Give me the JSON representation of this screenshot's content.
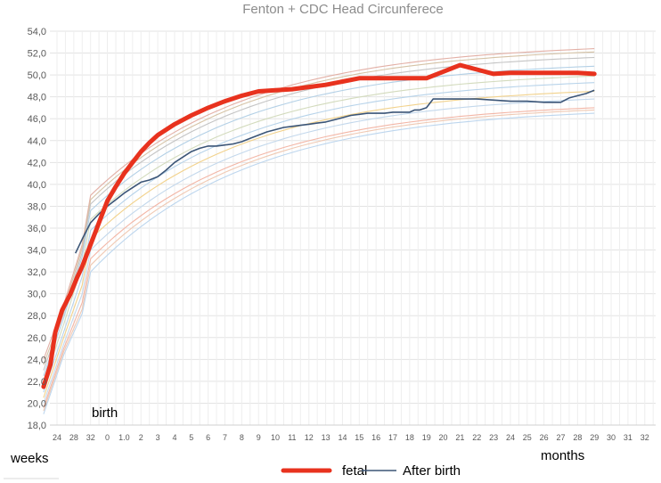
{
  "chart_data": {
    "type": "line",
    "title": "Fenton + CDC Head Circunferece",
    "xlabel": "",
    "ylabel": "",
    "ylim": [
      18.0,
      54.0
    ],
    "yticks": [
      "18,0",
      "20,0",
      "22,0",
      "24,0",
      "26,0",
      "28,0",
      "30,0",
      "32,0",
      "34,0",
      "36,0",
      "38,0",
      "40,0",
      "42,0",
      "44,0",
      "46,0",
      "48,0",
      "50,0",
      "52,0",
      "54,0"
    ],
    "x_tick_labels": [
      "24",
      "28",
      "32",
      "0",
      "1.0",
      "2",
      "3",
      "4",
      "5",
      "6",
      "7",
      "8",
      "9",
      "10",
      "11",
      "12",
      "13",
      "14",
      "15",
      "16",
      "17",
      "18",
      "19",
      "20",
      "21",
      "22",
      "23",
      "24",
      "25",
      "26",
      "27",
      "28",
      "29",
      "30",
      "31",
      "32"
    ],
    "annotations": {
      "weeks": "weeks",
      "birth": "birth",
      "months": "months"
    },
    "grid": true,
    "legend": "bottom-center",
    "series": [
      {
        "name": "fetal",
        "color": "#e8321e",
        "points": [
          [
            -0.8,
            21.5
          ],
          [
            -0.4,
            23.5
          ],
          [
            -0.1,
            26.5
          ],
          [
            0.3,
            28.5
          ],
          [
            0.8,
            30.0
          ],
          [
            1.2,
            31.5
          ],
          [
            1.5,
            32.5
          ],
          [
            2,
            34.5
          ],
          [
            2.5,
            36.5
          ],
          [
            3,
            38.5
          ],
          [
            3.5,
            39.8
          ],
          [
            4,
            41.0
          ],
          [
            4.5,
            42.0
          ],
          [
            5,
            43.0
          ],
          [
            5.5,
            43.8
          ],
          [
            6,
            44.5
          ],
          [
            7,
            45.5
          ],
          [
            8,
            46.3
          ],
          [
            9,
            47.0
          ],
          [
            10,
            47.6
          ],
          [
            11,
            48.1
          ],
          [
            12,
            48.5
          ],
          [
            13,
            48.6
          ],
          [
            14,
            48.7
          ],
          [
            15,
            48.9
          ],
          [
            16,
            49.1
          ],
          [
            17,
            49.4
          ],
          [
            18,
            49.7
          ],
          [
            19,
            49.7
          ],
          [
            20,
            49.7
          ],
          [
            21,
            49.7
          ],
          [
            22,
            49.7
          ],
          [
            23,
            50.3
          ],
          [
            24,
            50.9
          ],
          [
            25,
            50.5
          ],
          [
            26,
            50.1
          ],
          [
            27,
            50.2
          ],
          [
            28,
            50.2
          ],
          [
            29,
            50.2
          ],
          [
            30,
            50.2
          ],
          [
            31,
            50.2
          ],
          [
            32,
            50.1
          ]
        ]
      },
      {
        "name": "After birth",
        "color": "#3b5577",
        "points": [
          [
            1.1,
            33.7
          ],
          [
            1.5,
            35.0
          ],
          [
            2,
            36.5
          ],
          [
            2.5,
            37.3
          ],
          [
            3,
            38.0
          ],
          [
            3.5,
            38.6
          ],
          [
            4,
            39.2
          ],
          [
            4.5,
            39.7
          ],
          [
            5,
            40.2
          ],
          [
            5.5,
            40.4
          ],
          [
            6,
            40.7
          ],
          [
            6.5,
            41.3
          ],
          [
            7,
            42.0
          ],
          [
            7.5,
            42.5
          ],
          [
            8,
            43.0
          ],
          [
            8.5,
            43.3
          ],
          [
            9,
            43.5
          ],
          [
            9.5,
            43.5
          ],
          [
            10,
            43.6
          ],
          [
            10.5,
            43.7
          ],
          [
            11,
            43.9
          ],
          [
            11.5,
            44.2
          ],
          [
            12,
            44.5
          ],
          [
            12.5,
            44.8
          ],
          [
            13,
            45.0
          ],
          [
            13.5,
            45.2
          ],
          [
            14,
            45.3
          ],
          [
            14.5,
            45.4
          ],
          [
            15,
            45.5
          ],
          [
            15.5,
            45.6
          ],
          [
            16,
            45.7
          ],
          [
            16.5,
            45.9
          ],
          [
            17,
            46.1
          ],
          [
            17.5,
            46.3
          ],
          [
            18,
            46.4
          ],
          [
            18.5,
            46.5
          ],
          [
            19,
            46.5
          ],
          [
            19.5,
            46.5
          ],
          [
            20,
            46.6
          ],
          [
            20.5,
            46.6
          ],
          [
            21,
            46.6
          ],
          [
            21.3,
            46.8
          ],
          [
            21.6,
            46.8
          ],
          [
            22,
            47.0
          ],
          [
            22.4,
            47.8
          ],
          [
            23,
            47.8
          ],
          [
            24,
            47.8
          ],
          [
            25,
            47.8
          ],
          [
            26,
            47.7
          ],
          [
            27,
            47.6
          ],
          [
            28,
            47.6
          ],
          [
            29,
            47.5
          ],
          [
            30,
            47.5
          ],
          [
            30.5,
            47.9
          ],
          [
            31,
            48.1
          ],
          [
            31.5,
            48.3
          ],
          [
            32,
            48.6
          ]
        ]
      }
    ],
    "reference_curves": [
      {
        "color": "#e3b0a6",
        "points": [
          [
            -0.8,
            24.0
          ],
          [
            0.4,
            29.0
          ],
          [
            1.5,
            34.5
          ],
          [
            2.0,
            39.0
          ],
          [
            32,
            52.4
          ]
        ]
      },
      {
        "color": "#d6c3a6",
        "points": [
          [
            -0.8,
            23.5
          ],
          [
            0.4,
            28.6
          ],
          [
            1.5,
            34.2
          ],
          [
            2.0,
            38.6
          ],
          [
            32,
            52.1
          ]
        ]
      },
      {
        "color": "#c4c4c4",
        "points": [
          [
            -0.8,
            23.0
          ],
          [
            0.4,
            28.2
          ],
          [
            1.5,
            33.8
          ],
          [
            2.0,
            38.2
          ],
          [
            32,
            51.6
          ]
        ]
      },
      {
        "color": "#b3d0e6",
        "points": [
          [
            -0.8,
            22.5
          ],
          [
            0.4,
            27.8
          ],
          [
            1.5,
            33.4
          ],
          [
            2.0,
            37.6
          ],
          [
            32,
            50.8
          ]
        ]
      },
      {
        "color": "#d3dbbd",
        "points": [
          [
            -0.8,
            21.8
          ],
          [
            0.4,
            27.2
          ],
          [
            1.5,
            32.6
          ],
          [
            2.0,
            36.8
          ],
          [
            32,
            49.9
          ]
        ]
      },
      {
        "color": "#b7d3ea",
        "points": [
          [
            -0.8,
            21.0
          ],
          [
            0.4,
            26.5
          ],
          [
            1.5,
            31.6
          ],
          [
            2.0,
            35.8
          ],
          [
            32,
            49.3
          ]
        ]
      },
      {
        "color": "#f2d28c",
        "points": [
          [
            -0.8,
            20.5
          ],
          [
            0.4,
            26.0
          ],
          [
            1.5,
            30.8
          ],
          [
            2.0,
            35.0
          ],
          [
            32,
            48.5
          ]
        ]
      },
      {
        "color": "#c3d8ec",
        "points": [
          [
            -0.8,
            20.0
          ],
          [
            0.4,
            25.4
          ],
          [
            1.5,
            30.0
          ],
          [
            2.0,
            34.0
          ],
          [
            32,
            47.8
          ]
        ]
      },
      {
        "color": "#f3b6a6",
        "points": [
          [
            -0.8,
            19.6
          ],
          [
            0.4,
            25.0
          ],
          [
            1.5,
            29.2
          ],
          [
            2.0,
            33.2
          ],
          [
            32,
            47.0
          ]
        ]
      },
      {
        "color": "#f0c9b3",
        "points": [
          [
            -0.8,
            19.3
          ],
          [
            0.4,
            24.7
          ],
          [
            1.5,
            28.6
          ],
          [
            2.0,
            32.6
          ],
          [
            32,
            46.8
          ]
        ]
      },
      {
        "color": "#bdd6ee",
        "points": [
          [
            -0.8,
            19.0
          ],
          [
            0.4,
            24.4
          ],
          [
            1.5,
            28.2
          ],
          [
            2.0,
            32.0
          ],
          [
            32,
            46.5
          ]
        ]
      }
    ]
  }
}
